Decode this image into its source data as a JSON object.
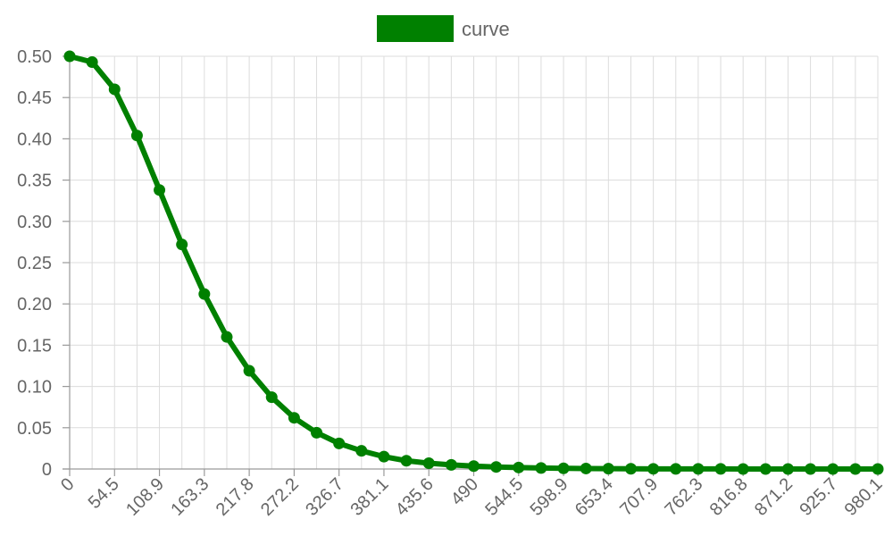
{
  "chart_data": {
    "type": "line",
    "legend": {
      "position": "top",
      "visible": true
    },
    "grid": true,
    "x_ticks": [
      "0",
      "54.5",
      "108.9",
      "163.3",
      "217.8",
      "272.2",
      "326.7",
      "381.1",
      "435.6",
      "490",
      "544.5",
      "598.9",
      "653.4",
      "707.9",
      "762.3",
      "816.8",
      "871.2",
      "925.7",
      "980.1"
    ],
    "y_ticks": [
      "0",
      "0.05",
      "0.10",
      "0.15",
      "0.20",
      "0.25",
      "0.30",
      "0.35",
      "0.40",
      "0.45",
      "0.50"
    ],
    "xlim": [
      0,
      980.1
    ],
    "ylim": [
      0,
      0.5
    ],
    "series": [
      {
        "name": "curve",
        "color": "#008000",
        "x": [
          0,
          27.23,
          54.45,
          81.68,
          108.9,
          136.13,
          163.35,
          190.58,
          217.8,
          245.03,
          272.25,
          299.48,
          326.7,
          353.93,
          381.15,
          408.38,
          435.6,
          462.83,
          490.05,
          517.28,
          544.5,
          571.73,
          598.95,
          626.18,
          653.4,
          680.63,
          707.85,
          735.08,
          762.3,
          789.53,
          816.75,
          843.98,
          871.2,
          898.43,
          925.65,
          952.88,
          980.1
        ],
        "y": [
          0.5,
          0.493,
          0.46,
          0.404,
          0.338,
          0.272,
          0.212,
          0.16,
          0.119,
          0.087,
          0.062,
          0.044,
          0.031,
          0.022,
          0.015,
          0.01,
          0.007,
          0.005,
          0.0035,
          0.0025,
          0.0018,
          0.0012,
          0.0008,
          0.0006,
          0.0004,
          0.0003,
          0.0002,
          0.0001,
          0.0001,
          0.0001,
          0,
          0,
          0,
          0,
          0,
          0,
          0
        ]
      }
    ]
  }
}
